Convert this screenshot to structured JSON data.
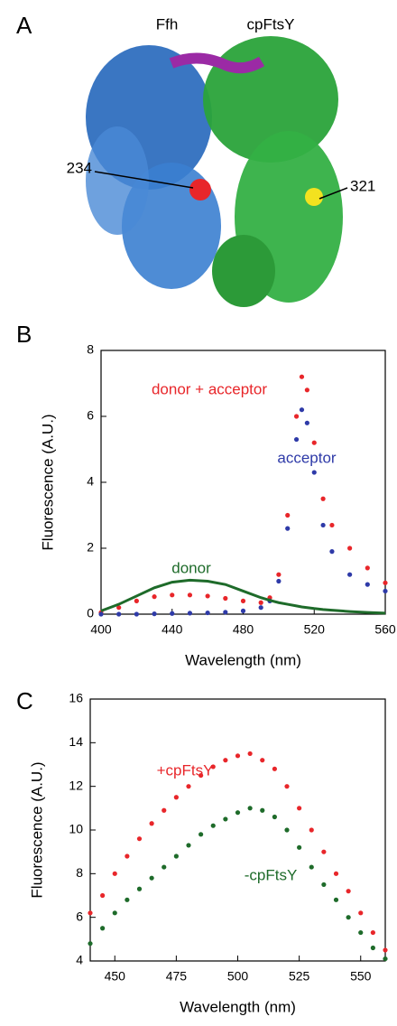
{
  "panel_labels": [
    "A",
    "B",
    "C"
  ],
  "structure": {
    "chain_labels": [
      "Ffh",
      "cpFtsY"
    ],
    "residue_labels": [
      "234",
      "321"
    ]
  },
  "chart_data": [
    {
      "type": "scatter",
      "xlabel": "Wavelength (nm)",
      "ylabel": "Fluorescence (A.U.)",
      "x": [
        400,
        410,
        420,
        430,
        440,
        450,
        460,
        470,
        480,
        490,
        495,
        500,
        505,
        510,
        513,
        516,
        520,
        525,
        530,
        540,
        550,
        560
      ],
      "series": [
        {
          "name": "donor + acceptor",
          "color": "#e8262a",
          "style": "dots",
          "values": [
            0.05,
            0.2,
            0.4,
            0.53,
            0.58,
            0.58,
            0.55,
            0.48,
            0.4,
            0.35,
            0.5,
            1.2,
            3.0,
            6.0,
            7.2,
            6.8,
            5.2,
            3.5,
            2.7,
            2.0,
            1.4,
            0.95
          ]
        },
        {
          "name": "acceptor",
          "color": "#2e3aa8",
          "style": "dots",
          "values": [
            0,
            0,
            0,
            0.01,
            0.02,
            0.03,
            0.04,
            0.06,
            0.1,
            0.2,
            0.4,
            1.0,
            2.6,
            5.3,
            6.2,
            5.8,
            4.3,
            2.7,
            1.9,
            1.2,
            0.9,
            0.7
          ]
        },
        {
          "name": "donor",
          "color": "#1e6b2a",
          "style": "line",
          "values": [
            0.1,
            0.3,
            0.55,
            0.8,
            0.97,
            1.03,
            1.0,
            0.9,
            0.7,
            0.5,
            0.42,
            0.35,
            0.3,
            0.25,
            0.22,
            0.2,
            0.17,
            0.14,
            0.12,
            0.08,
            0.05,
            0.03
          ]
        }
      ],
      "xlim": [
        400,
        560
      ],
      "xticks": [
        400,
        440,
        480,
        520,
        560
      ],
      "ylim": [
        0,
        8
      ],
      "yticks": [
        0,
        2,
        4,
        6,
        8
      ]
    },
    {
      "type": "scatter",
      "xlabel": "Wavelength (nm)",
      "ylabel": "Fluorescence (A.U.)",
      "x": [
        440,
        445,
        450,
        455,
        460,
        465,
        470,
        475,
        480,
        485,
        490,
        495,
        500,
        505,
        510,
        515,
        520,
        525,
        530,
        535,
        540,
        545,
        550,
        555,
        560
      ],
      "series": [
        {
          "name": "+cpFtsY",
          "color": "#e8262a",
          "style": "dots",
          "values": [
            6.2,
            7.0,
            8.0,
            8.8,
            9.6,
            10.3,
            10.9,
            11.5,
            12.0,
            12.5,
            12.9,
            13.2,
            13.4,
            13.5,
            13.2,
            12.8,
            12.0,
            11.0,
            10.0,
            9.0,
            8.0,
            7.2,
            6.2,
            5.3,
            4.5
          ]
        },
        {
          "name": "-cpFtsY",
          "color": "#1e6b2a",
          "style": "dots",
          "values": [
            4.8,
            5.5,
            6.2,
            6.8,
            7.3,
            7.8,
            8.3,
            8.8,
            9.3,
            9.8,
            10.2,
            10.5,
            10.8,
            11.0,
            10.9,
            10.6,
            10.0,
            9.2,
            8.3,
            7.5,
            6.8,
            6.0,
            5.3,
            4.6,
            4.1
          ]
        }
      ],
      "xlim": [
        440,
        560
      ],
      "xticks": [
        450,
        475,
        500,
        525,
        550
      ],
      "ylim": [
        4,
        16
      ],
      "yticks": [
        4,
        6,
        8,
        10,
        12,
        14,
        16
      ]
    }
  ]
}
